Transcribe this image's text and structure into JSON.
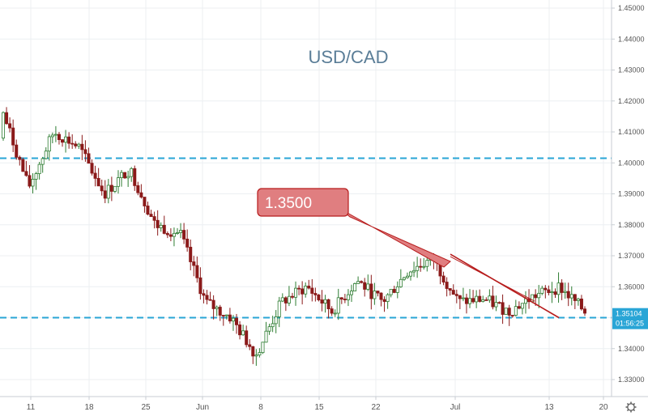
{
  "chart_data": {
    "type": "candlestick",
    "title": "USD/CAD",
    "y_ticks": [
      "1.33000",
      "1.34000",
      "1.35000",
      "1.36000",
      "1.37000",
      "1.38000",
      "1.39000",
      "1.40000",
      "1.41000",
      "1.42000",
      "1.43000",
      "1.44000",
      "1.45000"
    ],
    "ylim": [
      1.327,
      1.4535
    ],
    "x_ticks": [
      "11",
      "18",
      "25",
      "Jun",
      "8",
      "15",
      "22",
      "Jul",
      "13",
      "20"
    ],
    "x_tick_index": [
      0,
      1,
      2,
      3,
      4,
      5,
      6,
      7,
      8,
      9
    ],
    "horizontal_levels": [
      1.4015,
      1.35
    ],
    "trendline": {
      "from": [
        "May 31",
        1.3705
      ],
      "to": [
        "Jul 16",
        1.35
      ]
    },
    "callout": {
      "label": "1.3500"
    },
    "price_box": {
      "price": "1.35104",
      "countdown": "01:56:25"
    },
    "colors": {
      "up": "#26a69a",
      "down": "#ef5350",
      "level": "#29a5d6",
      "trend": "#b71c1c",
      "callout_fill": "#e07e80"
    },
    "ohlc_keypoints": [
      [
        1.408,
        1.416
      ],
      [
        1.395,
        1.392
      ],
      [
        1.407,
        1.41
      ],
      [
        1.398,
        1.405
      ],
      [
        1.386,
        1.39
      ],
      [
        1.403,
        1.398
      ],
      [
        1.376,
        1.38
      ],
      [
        1.372,
        1.377
      ],
      [
        1.359,
        1.355
      ],
      [
        1.349,
        1.35
      ],
      [
        1.342,
        1.338
      ],
      [
        1.348,
        1.355
      ],
      [
        1.358,
        1.36
      ],
      [
        1.355,
        1.352
      ],
      [
        1.359,
        1.362
      ],
      [
        1.352,
        1.355
      ],
      [
        1.362,
        1.365
      ],
      [
        1.368,
        1.369
      ],
      [
        1.357,
        1.355
      ],
      [
        1.353,
        1.356
      ],
      [
        1.349,
        1.352
      ],
      [
        1.36,
        1.357
      ],
      [
        1.363,
        1.36
      ],
      [
        1.351,
        1.352
      ]
    ],
    "legend": "none",
    "grid": true
  }
}
